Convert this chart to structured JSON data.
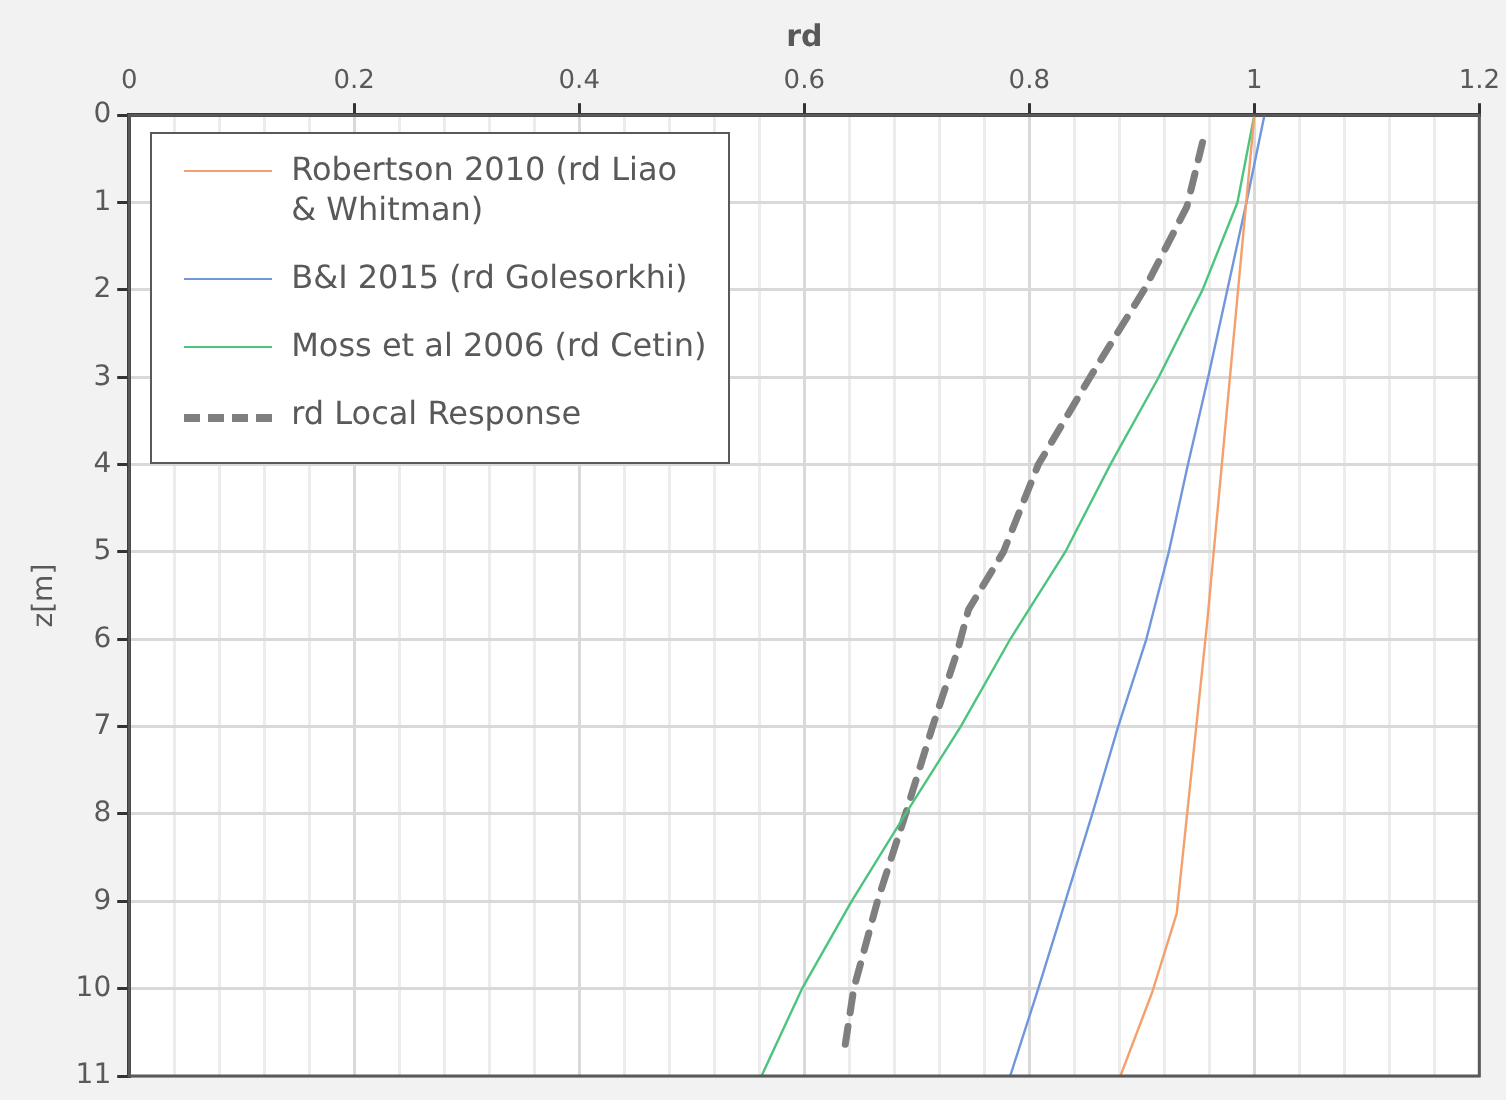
{
  "chart_data": {
    "type": "line",
    "xlabel": "rd",
    "ylabel": "z[m]",
    "xlim": [
      0,
      1.2
    ],
    "ylim": [
      11,
      0
    ],
    "xticks": [
      0,
      {
        "value": 0.04,
        "label": null
      },
      {
        "value": 0.08,
        "label": null
      },
      {
        "value": 0.12,
        "label": null
      },
      {
        "value": 0.16,
        "label": null
      },
      0.2,
      {
        "value": 0.24,
        "label": null
      },
      {
        "value": 0.28,
        "label": null
      },
      {
        "value": 0.32,
        "label": null
      },
      {
        "value": 0.36,
        "label": null
      },
      0.4,
      {
        "value": 0.44,
        "label": null
      },
      {
        "value": 0.48,
        "label": null
      },
      {
        "value": 0.52,
        "label": null
      },
      {
        "value": 0.56,
        "label": null
      },
      0.6,
      {
        "value": 0.64,
        "label": null
      },
      {
        "value": 0.68,
        "label": null
      },
      {
        "value": 0.72,
        "label": null
      },
      {
        "value": 0.76,
        "label": null
      },
      0.8,
      {
        "value": 0.84,
        "label": null
      },
      {
        "value": 0.88,
        "label": null
      },
      {
        "value": 0.92,
        "label": null
      },
      {
        "value": 0.96,
        "label": null
      },
      1,
      {
        "value": 1.04,
        "label": null
      },
      {
        "value": 1.08,
        "label": null
      },
      {
        "value": 1.12,
        "label": null
      },
      {
        "value": 1.16,
        "label": null
      },
      1.2
    ],
    "yticks": [
      0,
      1,
      2,
      3,
      4,
      5,
      6,
      7,
      8,
      9,
      10,
      11
    ],
    "grid": true,
    "legend": "top left",
    "marker": "none",
    "series": [
      {
        "name": "Robertson 2010 (rd Liao & Whitman)",
        "color": "#f4a06c",
        "x": [
          1.0,
          0.958,
          0.931,
          0.909,
          0.881
        ],
        "values": [
          0,
          5.82,
          9.14,
          10.05,
          11
        ]
      },
      {
        "name": "B&I 2015 (rd Golesorkhi)",
        "color": "#7096dc",
        "x": [
          1.009,
          0.993,
          0.976,
          0.959,
          0.941,
          0.924,
          0.904,
          0.879,
          0.856,
          0.832,
          0.808,
          0.783
        ],
        "values": [
          0,
          1,
          2,
          3,
          4,
          5,
          6,
          7,
          8,
          9,
          10,
          11
        ]
      },
      {
        "name": "Moss et al 2006 (rd Cetin)",
        "color": "#4cc47e",
        "x": [
          1.0,
          0.985,
          0.954,
          0.915,
          0.872,
          0.832,
          0.783,
          0.739,
          0.69,
          0.642,
          0.598,
          0.562
        ],
        "values": [
          0,
          1,
          2,
          3,
          4,
          5,
          6,
          7,
          8,
          9,
          10,
          11
        ]
      },
      {
        "name": "rd Local Response",
        "color": "#7f7f7f",
        "line_style": "dashed",
        "x": [
          0.954,
          0.94,
          0.902,
          0.854,
          0.808,
          0.777,
          0.746,
          0.736,
          0.714,
          0.69,
          0.665,
          0.644,
          0.635
        ],
        "values": [
          0.31,
          1.05,
          2,
          3,
          4,
          5,
          5.66,
          6.14,
          7,
          8,
          9,
          10,
          10.76
        ]
      }
    ]
  }
}
